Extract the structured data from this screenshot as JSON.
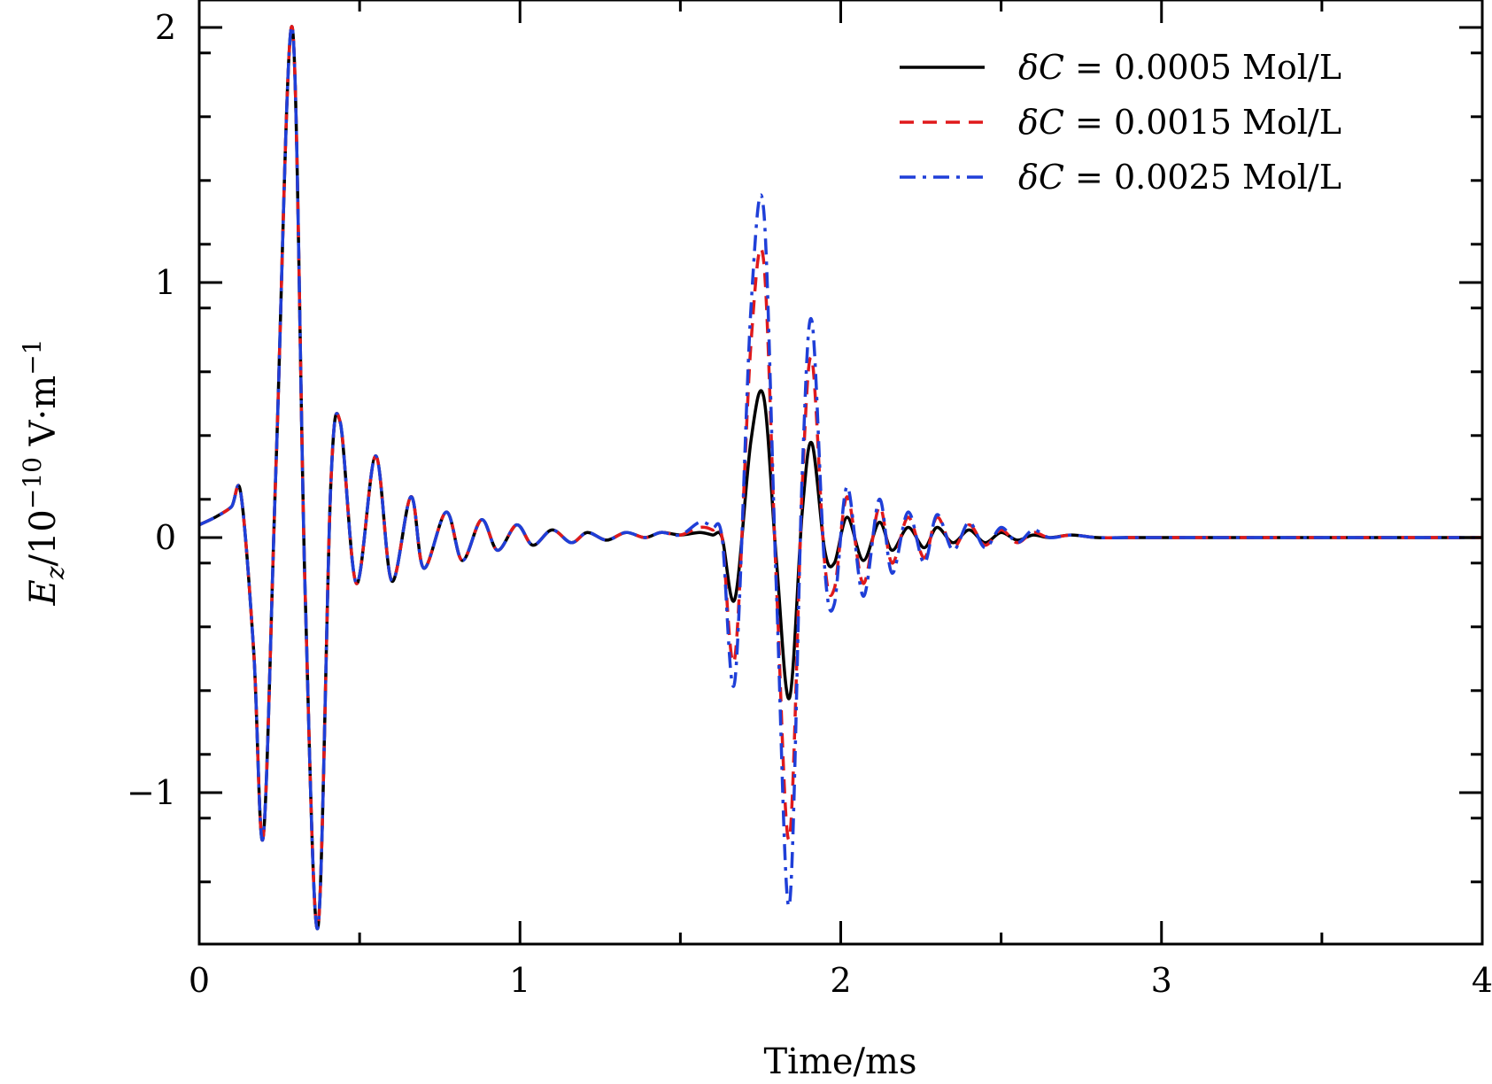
{
  "chart_data": {
    "type": "line",
    "xlabel": "Time/ms",
    "ylabel": {
      "base": "E",
      "sub": "z",
      "rest": "/10",
      "exp1": "−10",
      "unit": " V·m",
      "exp2": "−1"
    },
    "xlim": [
      0,
      4
    ],
    "ylim": [
      -1.6,
      2.1
    ],
    "x_ticks": [
      0,
      1,
      2,
      3,
      4
    ],
    "x_tick_labels": [
      "0",
      "1",
      "2",
      "3",
      "4"
    ],
    "y_ticks": [
      -1,
      0,
      1,
      2
    ],
    "y_tick_labels": [
      "−1",
      "0",
      "1",
      "2"
    ],
    "grid": false,
    "legend_position": "top-right",
    "series": [
      {
        "name_prefix": "δC",
        "name_value": " = 0.0005 Mol/L",
        "color": "#000000",
        "dash": "solid",
        "late_scale": 1.0,
        "x": [
          0,
          0.05,
          0.1,
          0.13,
          0.17,
          0.2,
          0.24,
          0.29,
          0.33,
          0.37,
          0.41,
          0.44,
          0.49,
          0.55,
          0.6,
          0.66,
          0.7,
          0.77,
          0.82,
          0.88,
          0.93,
          0.99,
          1.04,
          1.1,
          1.16,
          1.21,
          1.27,
          1.33,
          1.39,
          1.44,
          1.5,
          1.56,
          1.6,
          1.63,
          1.67,
          1.72,
          1.76,
          1.8,
          1.84,
          1.88,
          1.91,
          1.95,
          1.98,
          2.02,
          2.07,
          2.12,
          2.16,
          2.21,
          2.26,
          2.3,
          2.35,
          2.4,
          2.45,
          2.5,
          2.55,
          2.6,
          2.65,
          2.72,
          2.8,
          2.9,
          3.0,
          3.2,
          4.0
        ],
        "y": [
          0.05,
          0.08,
          0.12,
          0.17,
          -0.45,
          -1.17,
          0.3,
          2.0,
          -0.2,
          -1.53,
          0.2,
          0.45,
          -0.18,
          0.32,
          -0.17,
          0.16,
          -0.12,
          0.1,
          -0.09,
          0.07,
          -0.05,
          0.05,
          -0.03,
          0.03,
          -0.02,
          0.02,
          -0.01,
          0.02,
          0.0,
          0.02,
          0.01,
          0.02,
          0.01,
          0.0,
          -0.24,
          0.38,
          0.55,
          -0.1,
          -0.63,
          0.1,
          0.37,
          -0.05,
          -0.1,
          0.08,
          -0.09,
          0.06,
          -0.05,
          0.04,
          -0.04,
          0.04,
          -0.02,
          0.03,
          -0.02,
          0.02,
          -0.01,
          0.01,
          0.0,
          0.01,
          0.0,
          0.0,
          0.0,
          0.0,
          0.0
        ]
      },
      {
        "name_prefix": "δC",
        "name_value": " = 0.0015 Mol/L",
        "color": "#e0191b",
        "dash": "dashed",
        "late_scale": 2.0,
        "x": [
          0,
          0.05,
          0.1,
          0.13,
          0.17,
          0.2,
          0.24,
          0.29,
          0.33,
          0.37,
          0.41,
          0.44,
          0.49,
          0.55,
          0.6,
          0.66,
          0.7,
          0.77,
          0.82,
          0.88,
          0.93,
          0.99,
          1.04,
          1.1,
          1.16,
          1.21,
          1.27,
          1.33,
          1.39,
          1.44,
          1.5,
          1.56,
          1.6,
          1.63,
          1.67,
          1.72,
          1.76,
          1.8,
          1.84,
          1.88,
          1.91,
          1.95,
          1.98,
          2.02,
          2.07,
          2.12,
          2.16,
          2.21,
          2.26,
          2.3,
          2.35,
          2.4,
          2.45,
          2.5,
          2.55,
          2.6,
          2.65,
          2.72,
          2.8,
          2.9,
          3.0,
          3.2,
          4.0
        ],
        "y": [
          0.05,
          0.08,
          0.12,
          0.17,
          -0.45,
          -1.17,
          0.3,
          2.0,
          -0.2,
          -1.53,
          0.2,
          0.45,
          -0.18,
          0.32,
          -0.17,
          0.16,
          -0.12,
          0.1,
          -0.09,
          0.07,
          -0.05,
          0.05,
          -0.03,
          0.03,
          -0.02,
          0.02,
          -0.01,
          0.02,
          0.0,
          0.02,
          0.01,
          0.04,
          0.03,
          0.0,
          -0.47,
          0.76,
          1.08,
          -0.2,
          -1.18,
          0.2,
          0.7,
          -0.1,
          -0.2,
          0.16,
          -0.18,
          0.12,
          -0.1,
          0.08,
          -0.08,
          0.08,
          -0.04,
          0.05,
          -0.03,
          0.03,
          -0.02,
          0.02,
          0.0,
          0.01,
          0.0,
          0.0,
          0.0,
          0.0,
          0.0
        ]
      },
      {
        "name_prefix": "δC",
        "name_value": " = 0.0025 Mol/L",
        "color": "#1f3fd8",
        "dash": "dashdot",
        "late_scale": 2.35,
        "x": [
          0,
          0.05,
          0.1,
          0.13,
          0.17,
          0.2,
          0.24,
          0.29,
          0.33,
          0.37,
          0.41,
          0.44,
          0.49,
          0.55,
          0.6,
          0.66,
          0.7,
          0.77,
          0.82,
          0.88,
          0.93,
          0.99,
          1.04,
          1.1,
          1.16,
          1.21,
          1.27,
          1.33,
          1.39,
          1.44,
          1.5,
          1.56,
          1.6,
          1.63,
          1.67,
          1.72,
          1.76,
          1.8,
          1.84,
          1.88,
          1.91,
          1.95,
          1.98,
          2.02,
          2.07,
          2.12,
          2.16,
          2.21,
          2.26,
          2.3,
          2.35,
          2.4,
          2.45,
          2.5,
          2.55,
          2.6,
          2.65,
          2.72,
          2.8,
          2.9,
          3.0,
          3.2,
          4.0
        ],
        "y": [
          0.05,
          0.08,
          0.12,
          0.17,
          -0.45,
          -1.17,
          0.3,
          2.0,
          -0.2,
          -1.53,
          0.2,
          0.45,
          -0.18,
          0.32,
          -0.17,
          0.16,
          -0.12,
          0.1,
          -0.09,
          0.07,
          -0.05,
          0.05,
          -0.03,
          0.03,
          -0.02,
          0.02,
          -0.01,
          0.02,
          0.0,
          0.02,
          0.01,
          0.06,
          0.04,
          0.0,
          -0.56,
          0.9,
          1.28,
          -0.23,
          -1.44,
          0.25,
          0.85,
          -0.12,
          -0.26,
          0.2,
          -0.23,
          0.15,
          -0.14,
          0.1,
          -0.1,
          0.09,
          -0.05,
          0.06,
          -0.04,
          0.04,
          -0.02,
          0.03,
          0.0,
          0.01,
          0.0,
          0.0,
          0.0,
          0.0,
          0.0
        ]
      }
    ]
  }
}
